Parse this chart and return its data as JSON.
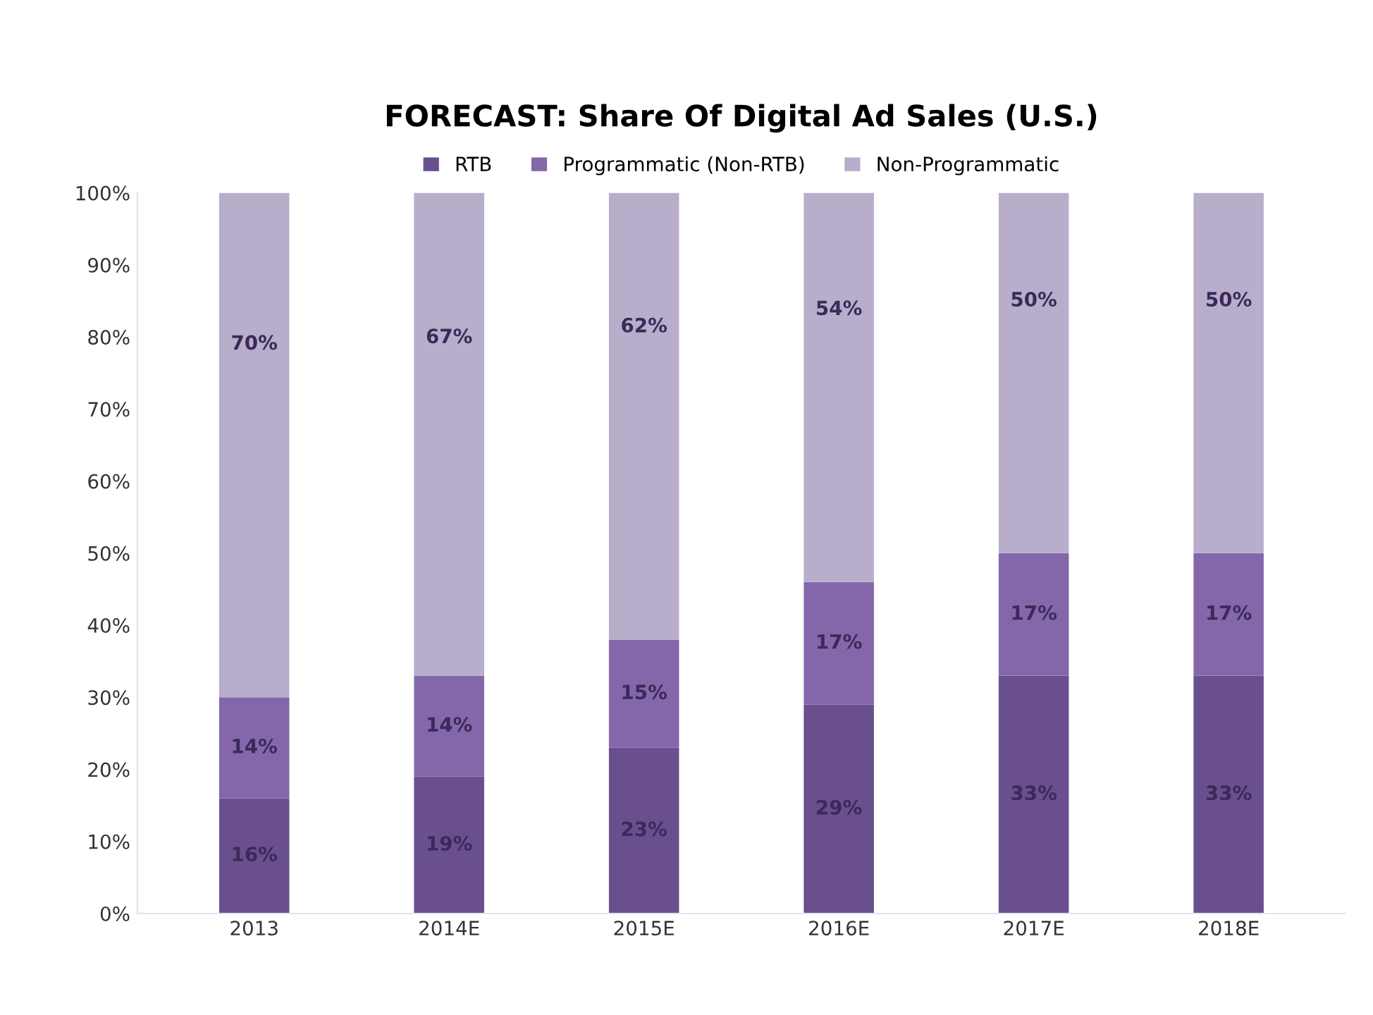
{
  "chart_data": {
    "type": "bar",
    "stacked": true,
    "title": "FORECAST: Share Of Digital Ad Sales (U.S.)",
    "categories": [
      "2013",
      "2014E",
      "2015E",
      "2016E",
      "2017E",
      "2018E"
    ],
    "series": [
      {
        "name": "RTB",
        "color": "#6a4f8e",
        "values": [
          16,
          19,
          23,
          29,
          33,
          33
        ],
        "value_labels": [
          "16%",
          "19%",
          "23%",
          "29%",
          "33%",
          "33%"
        ]
      },
      {
        "name": "Programmatic (Non-RTB)",
        "color": "#8467aa",
        "values": [
          14,
          14,
          15,
          17,
          17,
          17
        ],
        "value_labels": [
          "14%",
          "14%",
          "15%",
          "17%",
          "17%",
          "17%"
        ]
      },
      {
        "name": "Non-Programmatic",
        "color": "#b8aecb",
        "values": [
          70,
          67,
          62,
          54,
          50,
          50
        ],
        "value_labels": [
          "70%",
          "67%",
          "62%",
          "54%",
          "50%",
          "50%"
        ]
      }
    ],
    "ylim": [
      0,
      100
    ],
    "yticks": [
      {
        "value": 0,
        "label": "0%"
      },
      {
        "value": 10,
        "label": "10%"
      },
      {
        "value": 20,
        "label": "20%"
      },
      {
        "value": 30,
        "label": "30%"
      },
      {
        "value": 40,
        "label": "40%"
      },
      {
        "value": 50,
        "label": "50%"
      },
      {
        "value": 60,
        "label": "60%"
      },
      {
        "value": 70,
        "label": "70%"
      },
      {
        "value": 80,
        "label": "80%"
      },
      {
        "value": 90,
        "label": "90%"
      },
      {
        "value": 100,
        "label": "100%"
      }
    ],
    "legend": "top",
    "grid": false
  }
}
